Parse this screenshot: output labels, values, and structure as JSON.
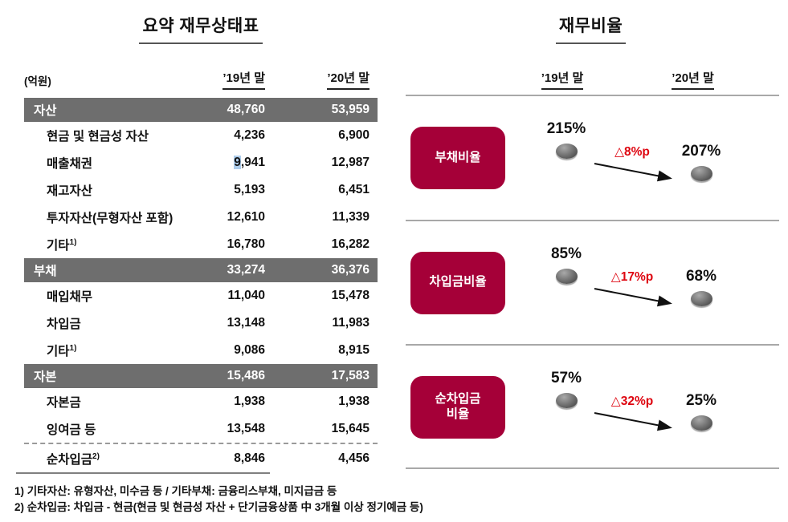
{
  "colors": {
    "crimson": "#a50038",
    "section_row_gray": "#6e6e6e",
    "delta_red": "#de0510",
    "selection_highlight_blue": "#aecdeb",
    "divider_gray": "#a8a8a8"
  },
  "left_panel": {
    "title": "요약 재무상태표",
    "unit_label": "(억원)",
    "col_header_19": "’19년 말",
    "col_header_20": "’20년 말",
    "rows": [
      {
        "type": "section",
        "label": "자산",
        "sup": "",
        "v19": "48,760",
        "v20": "53,959",
        "highlight_first": false
      },
      {
        "type": "item",
        "label": "현금 및 현금성 자산",
        "sup": "",
        "v19": "4,236",
        "v20": "6,900",
        "highlight_first": false
      },
      {
        "type": "item",
        "label": "매출채권",
        "sup": "",
        "v19": "9,941",
        "v20": "12,987",
        "highlight_first": true
      },
      {
        "type": "item",
        "label": "재고자산",
        "sup": "",
        "v19": "5,193",
        "v20": "6,451",
        "highlight_first": false
      },
      {
        "type": "item",
        "label": "투자자산(무형자산 포함)",
        "sup": "",
        "v19": "12,610",
        "v20": "11,339",
        "highlight_first": false
      },
      {
        "type": "item",
        "label": "기타",
        "sup": "1)",
        "v19": "16,780",
        "v20": "16,282",
        "highlight_first": false
      },
      {
        "type": "section",
        "label": "부채",
        "sup": "",
        "v19": "33,274",
        "v20": "36,376",
        "highlight_first": false
      },
      {
        "type": "item",
        "label": "매입채무",
        "sup": "",
        "v19": "11,040",
        "v20": "15,478",
        "highlight_first": false
      },
      {
        "type": "item",
        "label": "차입금",
        "sup": "",
        "v19": "13,148",
        "v20": "11,983",
        "highlight_first": false
      },
      {
        "type": "item",
        "label": "기타",
        "sup": "1)",
        "v19": "9,086",
        "v20": "8,915",
        "highlight_first": false
      },
      {
        "type": "section",
        "label": "자본",
        "sup": "",
        "v19": "15,486",
        "v20": "17,583",
        "highlight_first": false
      },
      {
        "type": "item",
        "label": "자본금",
        "sup": "",
        "v19": "1,938",
        "v20": "1,938",
        "highlight_first": false
      },
      {
        "type": "item",
        "label": "잉여금 등",
        "sup": "",
        "v19": "13,548",
        "v20": "15,645",
        "highlight_first": false
      },
      {
        "type": "net",
        "label": "순차입금",
        "sup": "2)",
        "v19": "8,846",
        "v20": "4,456",
        "highlight_first": false
      }
    ],
    "footnotes": [
      "1) 기타자산: 유형자산, 미수금 등 / 기타부채: 금융리스부채, 미지급금 등",
      "2) 순차입금: 차입금 - 현금(현금 및 현금성 자산 + 단기금융상품 中 3개월 이상 정기예금 등)"
    ]
  },
  "right_panel": {
    "title": "재무비율",
    "col_header_19": "’19년 말",
    "col_header_20": "’20년 말",
    "ratios": [
      {
        "label": "부채비율",
        "v19": "215%",
        "delta": "△8%p",
        "v20": "207%"
      },
      {
        "label": "차입금비율",
        "v19": "85%",
        "delta": "△17%p",
        "v20": "68%"
      },
      {
        "label": "순차입금\n비율",
        "v19": "57%",
        "delta": "△32%p",
        "v20": "25%"
      }
    ]
  }
}
